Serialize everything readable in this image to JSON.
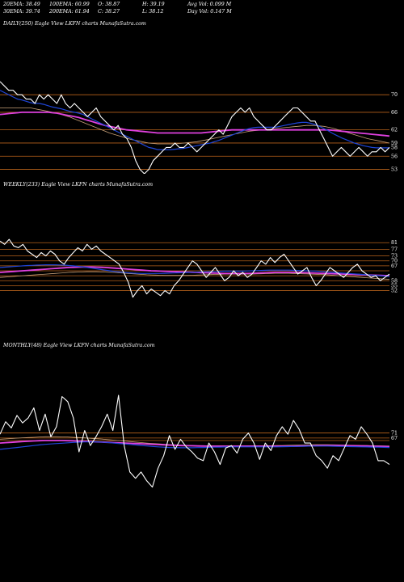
{
  "header": {
    "ema20": "20EMA: 38.49",
    "ema100": "100EMA: 60.99",
    "open": "O: 38.87",
    "high": "H: 39.19",
    "avg_vol": "Avg Vol: 0.099 M",
    "ema30": "30EMA: 39.74",
    "ema200": "200EMA: 61.94",
    "close": "C: 38.27",
    "low": "L: 38.12",
    "day_vol": "Day Vol: 0.147 M"
  },
  "colors": {
    "background": "#000000",
    "price": "#ffffff",
    "level": "#b8621b",
    "ma_blue": "#1f45d8",
    "ma_magenta": "#e040e0",
    "ma_tan": "#c8a078"
  },
  "chart_data": [
    {
      "type": "line",
      "title": "DAILY(250) Eagle  View  LKFN  charts MunafaSutra.com",
      "y_ticks": [
        "70",
        "66",
        "62",
        "59",
        "58",
        "56",
        "53"
      ],
      "y_tick_values": [
        70,
        66,
        62,
        59,
        58,
        56,
        53
      ],
      "ylim": [
        52,
        75
      ],
      "levels": [
        70,
        66,
        62,
        59,
        56,
        53
      ],
      "series": [
        {
          "role": "price",
          "values": [
            73,
            72,
            71,
            71,
            70,
            70,
            69,
            69,
            68,
            70,
            69,
            70,
            69,
            68,
            70,
            68,
            67,
            68,
            67,
            66,
            65,
            66,
            67,
            65,
            64,
            63,
            62,
            63,
            61,
            60,
            58,
            55,
            53,
            52,
            53,
            55,
            56,
            57,
            58,
            58,
            59,
            58,
            58,
            59,
            58,
            57,
            58,
            59,
            60,
            61,
            62,
            61,
            63,
            65,
            66,
            67,
            66,
            67,
            65,
            64,
            63,
            62,
            62,
            63,
            64,
            65,
            66,
            67,
            67,
            66,
            65,
            64,
            64,
            62,
            60,
            58,
            56,
            57,
            58,
            57,
            56,
            57,
            58,
            57,
            56,
            57,
            57,
            58,
            57,
            58
          ]
        },
        {
          "role": "ma-blue",
          "values": [
            71,
            70.5,
            70,
            69.5,
            69,
            68.8,
            68.5,
            68.2,
            68,
            68,
            67.8,
            67.5,
            67.2,
            67,
            66.8,
            66.5,
            66.2,
            66,
            65.8,
            65.5,
            65,
            64.5,
            64,
            63.5,
            63,
            62.5,
            62,
            61.5,
            61,
            60.5,
            60,
            59.5,
            59,
            58.5,
            58,
            57.8,
            57.5,
            57.5,
            57.5,
            57.5,
            57.6,
            57.7,
            57.8,
            58,
            58.2,
            58.4,
            58.6,
            58.8,
            59,
            59.3,
            59.6,
            60,
            60.4,
            60.8,
            61.2,
            61.6,
            62,
            62.3,
            62.5,
            62.6,
            62.6,
            62.6,
            62.6,
            62.6,
            62.8,
            63,
            63.2,
            63.4,
            63.6,
            63.7,
            63.7,
            63.5,
            63.2,
            62.8,
            62.3,
            61.8,
            61.2,
            60.7,
            60.2,
            59.8,
            59.4,
            59,
            58.7,
            58.4,
            58.2,
            58,
            57.9,
            57.9,
            57.9,
            57.9
          ]
        },
        {
          "role": "ma-magenta",
          "values": [
            65.5,
            65.6,
            65.7,
            65.8,
            65.9,
            66,
            66,
            66,
            66,
            66,
            66,
            66,
            65.9,
            65.8,
            65.6,
            65.4,
            65.2,
            65,
            64.8,
            64.5,
            64.2,
            63.9,
            63.6,
            63.3,
            63,
            62.8,
            62.6,
            62.4,
            62.2,
            62,
            61.9,
            61.8,
            61.7,
            61.6,
            61.5,
            61.4,
            61.3,
            61.3,
            61.3,
            61.3,
            61.3,
            61.3,
            61.3,
            61.3,
            61.3,
            61.3,
            61.3,
            61.4,
            61.5,
            61.6,
            61.7,
            61.8,
            61.9,
            62,
            62,
            62,
            62,
            62,
            62,
            62,
            62,
            62,
            62,
            62,
            62,
            62,
            62,
            62,
            62,
            62,
            62,
            62,
            62,
            62,
            62,
            62,
            61.9,
            61.8,
            61.7,
            61.6,
            61.5,
            61.4,
            61.3,
            61.2,
            61.1,
            61,
            60.9,
            60.8,
            60.7,
            60.6
          ]
        },
        {
          "role": "ma-tan",
          "values": [
            67,
            67,
            67,
            67,
            67,
            67,
            67,
            67,
            66.8,
            66.6,
            66.4,
            66.2,
            66,
            65.8,
            65.5,
            65.2,
            64.9,
            64.5,
            64.1,
            63.7,
            63.3,
            62.9,
            62.5,
            62.1,
            61.7,
            61.3,
            61,
            60.7,
            60.4,
            60.1,
            59.8,
            59.6,
            59.4,
            59.2,
            59,
            58.9,
            58.8,
            58.8,
            58.8,
            58.8,
            58.8,
            58.9,
            59,
            59.1,
            59.2,
            59.3,
            59.5,
            59.7,
            59.9,
            60.1,
            60.3,
            60.5,
            60.7,
            60.9,
            61.1,
            61.3,
            61.5,
            61.7,
            61.8,
            61.9,
            62,
            62.1,
            62.2,
            62.3,
            62.4,
            62.5,
            62.6,
            62.7,
            62.8,
            62.9,
            63,
            63,
            63,
            62.9,
            62.8,
            62.6,
            62.4,
            62.1,
            61.8,
            61.5,
            61.2,
            60.9,
            60.6,
            60.3,
            60,
            59.8,
            59.6,
            59.4,
            59.2,
            59
          ]
        }
      ]
    },
    {
      "type": "line",
      "title": "WEEKLY(233) Eagle  View  LKFN  charts MunafaSutra.com",
      "y_ticks": [
        "81",
        "77",
        "73",
        "70",
        "67",
        "58",
        "55",
        "52"
      ],
      "y_tick_values": [
        81,
        77,
        73,
        70,
        67,
        58,
        55,
        52
      ],
      "ylim": [
        42,
        86
      ],
      "levels": [
        81,
        77,
        73,
        70,
        67,
        64,
        61,
        58,
        55,
        52
      ],
      "series": [
        {
          "role": "price",
          "values": [
            82,
            80,
            83,
            79,
            78,
            80,
            76,
            74,
            72,
            75,
            73,
            76,
            74,
            70,
            68,
            72,
            75,
            78,
            76,
            80,
            77,
            79,
            76,
            74,
            72,
            70,
            68,
            63,
            57,
            48,
            52,
            55,
            50,
            53,
            51,
            49,
            52,
            50,
            55,
            58,
            62,
            66,
            70,
            68,
            64,
            60,
            63,
            66,
            62,
            58,
            60,
            64,
            61,
            63,
            60,
            62,
            66,
            70,
            68,
            72,
            69,
            72,
            74,
            70,
            66,
            62,
            64,
            66,
            60,
            55,
            58,
            62,
            66,
            64,
            62,
            60,
            63,
            66,
            68,
            64,
            62,
            60,
            61,
            58,
            60,
            62
          ]
        },
        {
          "role": "ma-blue",
          "values": [
            66,
            66.2,
            66.4,
            66.6,
            66.8,
            67,
            67.2,
            67.3,
            67.4,
            67.5,
            67.6,
            67.6,
            67.6,
            67.5,
            67.4,
            67.2,
            67,
            66.7,
            66.4,
            66,
            65.6,
            65.2,
            64.8,
            64.4,
            64,
            63.6,
            63.3,
            63,
            62.8,
            62.6,
            62.5,
            62.4,
            62.4,
            62.4,
            62.4,
            62.4,
            62.5,
            62.6,
            62.7,
            62.8,
            62.9,
            63,
            63.1,
            63.2,
            63.3,
            63.4,
            63.5,
            63.6,
            63.7,
            63.8,
            63.8,
            63.8,
            63.8,
            63.8,
            63.9,
            64,
            64.1,
            64.2,
            64.3,
            64.4,
            64.4,
            64.4,
            64.4,
            64.4,
            64.3,
            64.2,
            64.1,
            64,
            63.9,
            63.8,
            63.6,
            63.4,
            63.2,
            63,
            62.8,
            62.6,
            62.4,
            62.2,
            62,
            61.8,
            61.6,
            61.4,
            61.2,
            61,
            60.8,
            60.6
          ]
        },
        {
          "role": "ma-magenta",
          "values": [
            63,
            63.2,
            63.4,
            63.6,
            63.8,
            64,
            64.2,
            64.4,
            64.6,
            64.8,
            65,
            65.2,
            65.4,
            65.6,
            65.8,
            66,
            66.1,
            66.2,
            66.3,
            66.3,
            66.3,
            66.2,
            66.1,
            66,
            65.8,
            65.6,
            65.4,
            65.2,
            65,
            64.8,
            64.6,
            64.4,
            64.2,
            64,
            63.9,
            63.8,
            63.7,
            63.6,
            63.5,
            63.4,
            63.3,
            63.2,
            63.1,
            63,
            62.9,
            62.8,
            62.7,
            62.6,
            62.5,
            62.4,
            62.4,
            62.4,
            62.4,
            62.4,
            62.4,
            62.5,
            62.6,
            62.7,
            62.8,
            62.9,
            63,
            63,
            63,
            63,
            63,
            63,
            62.9,
            62.8,
            62.7,
            62.6,
            62.5,
            62.4,
            62.3,
            62.2,
            62.1,
            62,
            61.9,
            61.8,
            61.7,
            61.6,
            61.5,
            61.4,
            61.3,
            61.2,
            61.1,
            61
          ]
        },
        {
          "role": "ma-tan",
          "values": [
            60,
            60.2,
            60.4,
            60.6,
            60.8,
            61,
            61.2,
            61.4,
            61.6,
            61.8,
            62,
            62.2,
            62.4,
            62.6,
            62.8,
            63,
            63.1,
            63.2,
            63.3,
            63.4,
            63.4,
            63.4,
            63.3,
            63.2,
            63.1,
            63,
            62.8,
            62.6,
            62.4,
            62.2,
            62,
            61.8,
            61.6,
            61.5,
            61.4,
            61.3,
            61.2,
            61.2,
            61.2,
            61.2,
            61.2,
            61.2,
            61.3,
            61.4,
            61.5,
            61.6,
            61.7,
            61.8,
            61.9,
            62,
            62,
            62,
            62,
            62,
            62,
            62,
            62.1,
            62.2,
            62.3,
            62.4,
            62.5,
            62.5,
            62.5,
            62.5,
            62.4,
            62.3,
            62.2,
            62.1,
            62,
            61.9,
            61.8,
            61.6,
            61.4,
            61.2,
            61,
            60.8,
            60.6,
            60.4,
            60.2,
            60,
            59.8,
            59.6,
            59.4,
            59.2,
            59,
            58.8
          ]
        }
      ]
    },
    {
      "type": "line",
      "title": "MONTHLY(48) Eagle  View  LKFN  charts MunafaSutra.com",
      "y_ticks": [
        "71",
        "67"
      ],
      "y_tick_values": [
        71,
        67
      ],
      "ylim": [
        20,
        110
      ],
      "levels": [
        71,
        67,
        65
      ],
      "series": [
        {
          "role": "price",
          "values": [
            70,
            80,
            75,
            85,
            79,
            83,
            91,
            73,
            86,
            68,
            76,
            100,
            96,
            83,
            56,
            73,
            61,
            68,
            76,
            86,
            73,
            101,
            61,
            40,
            35,
            40,
            33,
            28,
            43,
            53,
            69,
            58,
            66,
            60,
            56,
            51,
            49,
            63,
            56,
            46,
            59,
            61,
            55,
            66,
            71,
            63,
            50,
            63,
            57,
            69,
            76,
            70,
            81,
            74,
            63,
            63,
            53,
            49,
            43,
            53,
            49,
            59,
            69,
            66,
            76,
            70,
            63,
            49,
            49,
            46
          ]
        },
        {
          "role": "ma-blue",
          "values": [
            58,
            58.5,
            59,
            59.5,
            60,
            60.5,
            61,
            61.5,
            62,
            62.3,
            62.6,
            62.9,
            63.2,
            63.5,
            63.7,
            63.9,
            64,
            64,
            63.8,
            63.5,
            63.1,
            62.7,
            62.3,
            61.9,
            61.5,
            61.1,
            60.7,
            60.3,
            60,
            59.7,
            59.5,
            59.4,
            59.3,
            59.3,
            59.3,
            59.4,
            59.5,
            59.6,
            59.7,
            59.8,
            59.9,
            60,
            60,
            60,
            60,
            60,
            60,
            60,
            60,
            60,
            60.1,
            60.2,
            60.3,
            60.4,
            60.5,
            60.6,
            60.6,
            60.6,
            60.6,
            60.5,
            60.4,
            60.3,
            60.2,
            60.1,
            60,
            59.9,
            59.8,
            59.7,
            59.6,
            59.5
          ]
        },
        {
          "role": "ma-magenta",
          "values": [
            63,
            63.3,
            63.6,
            63.9,
            64.2,
            64.5,
            64.7,
            64.9,
            65,
            65,
            65,
            65,
            64.9,
            64.8,
            64.6,
            64.4,
            64.2,
            64,
            63.8,
            63.6,
            63.4,
            63.2,
            63,
            62.8,
            62.6,
            62.4,
            62.2,
            62,
            61.8,
            61.6,
            61.4,
            61.2,
            61,
            60.9,
            60.8,
            60.7,
            60.6,
            60.5,
            60.5,
            60.5,
            60.5,
            60.5,
            60.5,
            60.5,
            60.5,
            60.5,
            60.5,
            60.5,
            60.5,
            60.5,
            60.5,
            60.5,
            60.5,
            60.6,
            60.7,
            60.8,
            60.9,
            61,
            61,
            61,
            61,
            61,
            60.9,
            60.8,
            60.7,
            60.6,
            60.5,
            60.4,
            60.3,
            60.2
          ]
        },
        {
          "role": "ma-tan",
          "values": [
            66,
            66.3,
            66.6,
            66.9,
            67.2,
            67.4,
            67.6,
            67.8,
            68,
            68,
            68,
            67.9,
            67.8,
            67.6,
            67.4,
            67.1,
            66.8,
            66.5,
            66.2,
            65.8,
            65.4,
            65,
            64.6,
            64.2,
            63.8,
            63.4,
            63,
            62.7,
            62.4,
            62.1,
            61.8,
            61.6,
            61.4,
            61.2,
            61,
            60.9,
            60.8,
            60.8,
            60.8,
            60.8,
            60.8,
            60.8,
            60.8,
            60.8,
            60.8,
            60.8,
            60.8,
            60.8,
            60.9,
            61,
            61.1,
            61.2,
            61.3,
            61.4,
            61.5,
            61.6,
            61.7,
            61.7,
            61.7,
            61.6,
            61.5,
            61.4,
            61.3,
            61.2,
            61.1,
            61,
            60.9,
            60.8,
            60.7,
            60.6
          ]
        }
      ]
    }
  ]
}
